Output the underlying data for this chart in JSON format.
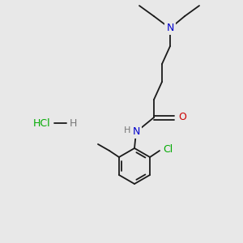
{
  "bg_color": "#e8e8e8",
  "bond_color": "#1a1a1a",
  "N_color": "#0000cc",
  "O_color": "#cc0000",
  "Cl_color": "#00aa00",
  "H_color": "#777777",
  "line_width": 1.3,
  "figsize": [
    3.0,
    3.0
  ],
  "dpi": 100,
  "xlim": [
    0,
    300
  ],
  "ylim": [
    0,
    300
  ]
}
